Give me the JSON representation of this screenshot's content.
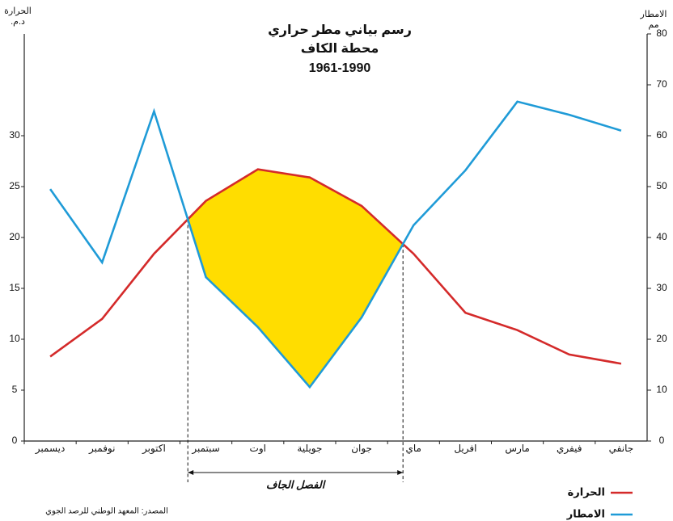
{
  "chart_data": {
    "type": "ombrothermic",
    "title": [
      "رسم بياني مطر حراري",
      "محطة الكاف",
      "1961-1990"
    ],
    "y_label": [
      "الحرارة",
      "د.م."
    ],
    "y2_label": [
      "الامطار",
      "مم"
    ],
    "categories": [
      "ديسمبر",
      "نوفمبر",
      "اكتوبر",
      "سبتمبر",
      "اوت",
      "جويلية",
      "جوان",
      "ماي",
      "افريل",
      "مارس",
      "فيفري",
      "جانفي"
    ],
    "series": [
      {
        "name": "الحرارة",
        "color": "#d42a2a",
        "values": [
          8.3,
          12.0,
          18.4,
          23.6,
          26.7,
          25.9,
          23.1,
          18.4,
          12.6,
          10.9,
          8.5,
          7.6
        ]
      },
      {
        "name": "الامطار",
        "color": "#1f9bd7",
        "axis": "y2",
        "values": [
          49.5,
          35.1,
          64.8,
          32.2,
          22.4,
          10.6,
          24.3,
          42.4,
          53.2,
          66.7,
          64.1,
          61.0
        ]
      }
    ],
    "ylim": [
      0,
      40
    ],
    "yticks": [
      0,
      5,
      10,
      15,
      20,
      25,
      30
    ],
    "y2lim": [
      0,
      80
    ],
    "y2ticks": [
      0,
      10,
      20,
      30,
      40,
      50,
      60,
      70,
      80
    ],
    "dry_fill": "#ffdd00",
    "dry_label": "الفصل الجاف",
    "source": "المصدر: المعهد الوطني للرصد الجوي"
  }
}
